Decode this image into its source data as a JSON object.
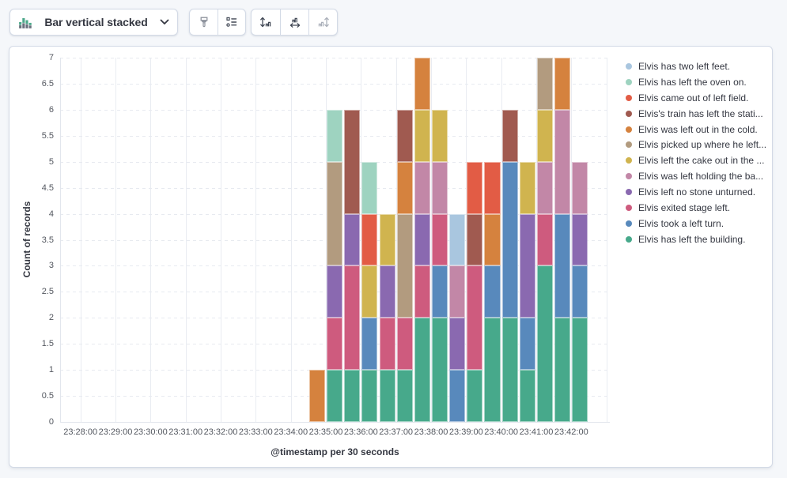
{
  "toolbar": {
    "chart_switcher": {
      "label": "Bar vertical stacked",
      "icon": "bar-vertical-stacked-icon",
      "chevron_icon": "chevron-down-icon"
    },
    "buttons": [
      {
        "name": "visual-options",
        "icon": "brush-icon",
        "enabled": true
      },
      {
        "name": "legend-settings",
        "icon": "list-icon",
        "enabled": true
      },
      {
        "name": "left-axis",
        "icon": "axis-left-icon",
        "enabled": true
      },
      {
        "name": "bottom-axis",
        "icon": "axis-bottom-icon",
        "enabled": true
      },
      {
        "name": "right-axis",
        "icon": "axis-right-icon",
        "enabled": false
      }
    ]
  },
  "chart_data": {
    "type": "bar",
    "stacked": true,
    "orientation": "vertical",
    "title": "",
    "xlabel": "@timestamp per 30 seconds",
    "ylabel": "Count of records",
    "ylim": [
      0,
      7
    ],
    "grid": {
      "horizontal": "dashed",
      "vertical": "solid"
    },
    "legend_position": "right",
    "legend_order": "reverse_of_series",
    "bucket_interval_seconds": 30,
    "y_tick_labels": [
      "0",
      "0.5",
      "1",
      "1.5",
      "2",
      "2.5",
      "3",
      "3.5",
      "4",
      "4.5",
      "5",
      "5.5",
      "6",
      "6.5",
      "7"
    ],
    "x_tick_labels": [
      "23:28:00",
      "23:29:00",
      "23:30:00",
      "23:31:00",
      "23:32:00",
      "23:33:00",
      "23:34:00",
      "23:35:00",
      "23:36:00",
      "23:37:00",
      "23:38:00",
      "23:39:00",
      "23:40:00",
      "23:41:00",
      "23:42:00"
    ],
    "categories": [
      "23:34:30",
      "23:35:00",
      "23:35:30",
      "23:36:00",
      "23:36:30",
      "23:37:00",
      "23:37:30",
      "23:38:00",
      "23:38:30",
      "23:39:00",
      "23:39:30",
      "23:40:00",
      "23:40:30",
      "23:41:00",
      "23:41:30",
      "23:42:00"
    ],
    "series": [
      {
        "label": "Elvis has left the building.",
        "color": "#47A98B",
        "values": [
          0,
          1,
          1,
          1,
          1,
          1,
          2,
          2,
          0,
          1,
          2,
          2,
          1,
          3,
          2,
          2
        ]
      },
      {
        "label": "Elvis took a left turn.",
        "color": "#5889BC",
        "values": [
          0,
          0,
          0,
          1,
          0,
          0,
          0,
          1,
          1,
          0,
          1,
          3,
          1,
          0,
          2,
          1
        ]
      },
      {
        "label": "Elvis exited stage left.",
        "color": "#CE5B7E",
        "values": [
          0,
          1,
          2,
          0,
          1,
          1,
          1,
          1,
          0,
          2,
          0,
          0,
          0,
          1,
          0,
          0
        ]
      },
      {
        "label": "Elvis left no stone unturned.",
        "color": "#8A69B0",
        "values": [
          0,
          1,
          1,
          0,
          1,
          0,
          1,
          0,
          1,
          0,
          0,
          0,
          2,
          0,
          0,
          1
        ]
      },
      {
        "label": "Elvis was left holding the ba...",
        "color": "#C287A7",
        "values": [
          0,
          0,
          0,
          0,
          0,
          0,
          1,
          1,
          1,
          0,
          0,
          0,
          0,
          1,
          2,
          1
        ]
      },
      {
        "label": "Elvis left the cake out in the ...",
        "color": "#D0B44F",
        "values": [
          0,
          0,
          0,
          1,
          1,
          0,
          1,
          1,
          0,
          0,
          0,
          0,
          1,
          1,
          0,
          0
        ]
      },
      {
        "label": "Elvis picked up where he left...",
        "color": "#B29B7F",
        "values": [
          0,
          2,
          0,
          0,
          0,
          2,
          0,
          0,
          0,
          0,
          0,
          0,
          0,
          1,
          0,
          0
        ]
      },
      {
        "label": "Elvis was left out in the cold.",
        "color": "#D5823E",
        "values": [
          1,
          0,
          0,
          0,
          0,
          1,
          1,
          0,
          0,
          0,
          1,
          0,
          0,
          0,
          1,
          0
        ]
      },
      {
        "label": "Elvis's train has left the stati...",
        "color": "#A05A50",
        "values": [
          0,
          0,
          2,
          0,
          0,
          1,
          0,
          0,
          0,
          1,
          0,
          1,
          0,
          0,
          0,
          0
        ]
      },
      {
        "label": "Elvis came out of left field.",
        "color": "#E25C45",
        "values": [
          0,
          0,
          0,
          1,
          0,
          0,
          0,
          0,
          0,
          1,
          1,
          0,
          0,
          0,
          0,
          0
        ]
      },
      {
        "label": "Elvis has left the oven on.",
        "color": "#9ED3C0",
        "values": [
          0,
          1,
          0,
          1,
          0,
          0,
          0,
          0,
          0,
          0,
          0,
          0,
          0,
          0,
          0,
          0
        ]
      },
      {
        "label": "Elvis has two left feet.",
        "color": "#A9C6DF",
        "values": [
          0,
          0,
          0,
          0,
          0,
          0,
          0,
          0,
          1,
          0,
          0,
          0,
          0,
          0,
          0,
          0
        ]
      }
    ]
  }
}
